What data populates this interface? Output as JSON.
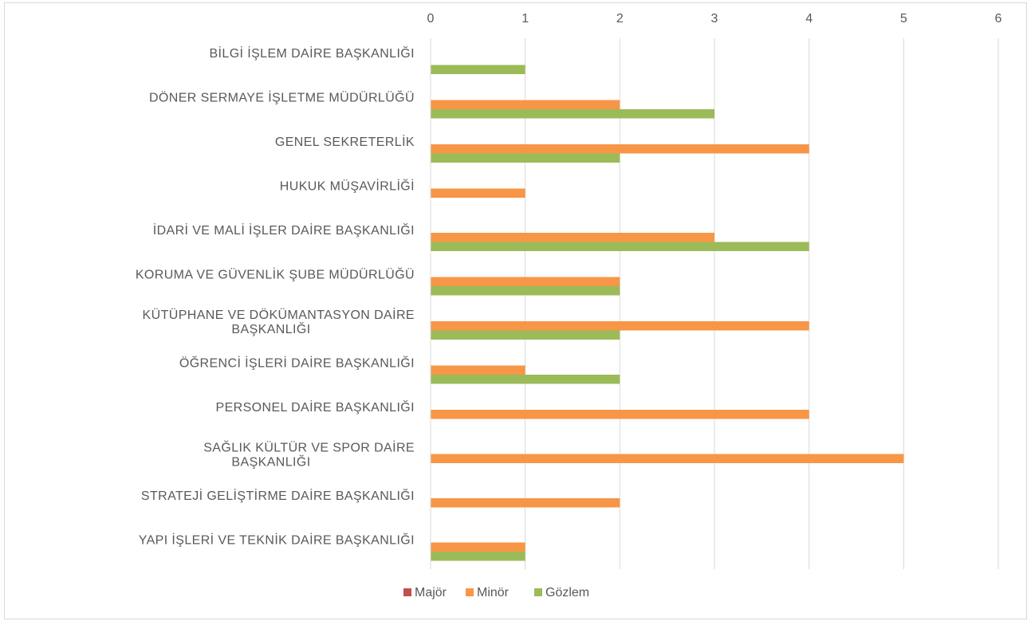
{
  "chart_data": {
    "type": "bar",
    "orientation": "horizontal",
    "categories": [
      [
        "BİLGİ İŞLEM DAİRE BAŞKANLIĞI"
      ],
      [
        "DÖNER SERMAYE İŞLETME MÜDÜRLÜĞÜ"
      ],
      [
        "GENEL SEKRETERLİK"
      ],
      [
        "HUKUK MÜŞAVİRLİĞİ"
      ],
      [
        "İDARİ VE MALİ İŞLER DAİRE BAŞKANLIĞI"
      ],
      [
        "KORUMA VE GÜVENLİK ŞUBE MÜDÜRLÜĞÜ"
      ],
      [
        "KÜTÜPHANE VE DÖKÜMANTASYON DAİRE",
        "BAŞKANLIĞI"
      ],
      [
        "ÖĞRENCİ İŞLERİ DAİRE BAŞKANLIĞI"
      ],
      [
        "PERSONEL DAİRE BAŞKANLIĞI"
      ],
      [
        "SAĞLIK KÜLTÜR VE SPOR DAİRE",
        "BAŞKANLIĞI"
      ],
      [
        "STRATEJİ GELİŞTİRME DAİRE BAŞKANLIĞI"
      ],
      [
        "YAPI İŞLERİ VE TEKNİK DAİRE BAŞKANLIĞI"
      ]
    ],
    "series": [
      {
        "name": "Majör",
        "color": "#c0504d",
        "values": [
          0,
          0,
          0,
          0,
          0,
          0,
          0,
          0,
          0,
          0,
          0,
          0
        ]
      },
      {
        "name": "Minör",
        "color": "#f79646",
        "values": [
          0,
          2,
          4,
          1,
          3,
          2,
          4,
          1,
          4,
          5,
          2,
          1
        ]
      },
      {
        "name": "Gözlem",
        "color": "#9bbb59",
        "values": [
          1,
          3,
          2,
          0,
          4,
          2,
          2,
          2,
          0,
          0,
          0,
          1
        ]
      }
    ],
    "x_ticks": [
      "0",
      "1",
      "2",
      "3",
      "4",
      "5",
      "6"
    ],
    "xlim": [
      0,
      6
    ],
    "x_axis_position": "top",
    "grid": true,
    "legend": "bottom"
  }
}
